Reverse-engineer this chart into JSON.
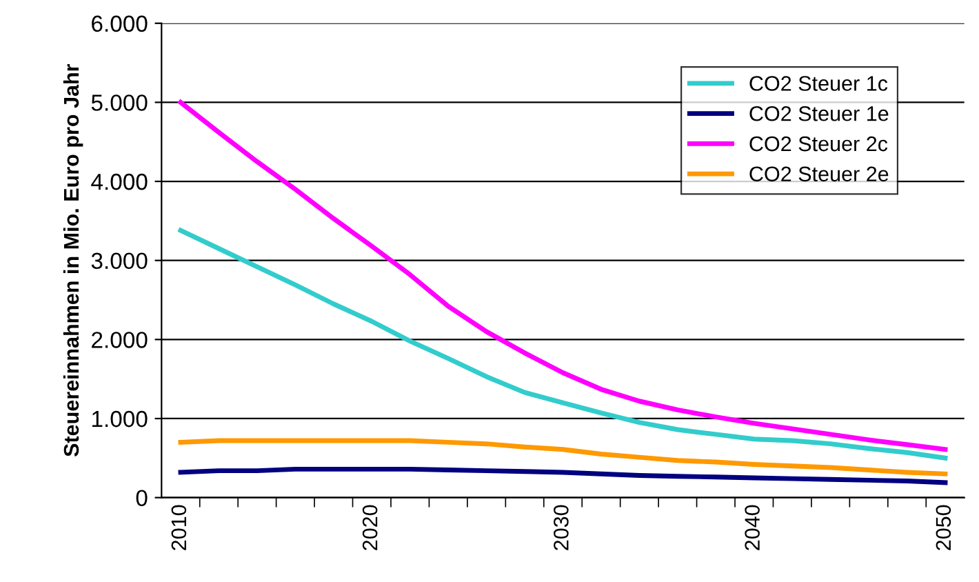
{
  "chart_data": {
    "type": "line",
    "ylabel": "Steuereinnahmen in Mio. Euro pro Jahr",
    "categories": [
      "2010",
      null,
      null,
      null,
      null,
      "2020",
      null,
      null,
      null,
      null,
      "2030",
      null,
      null,
      null,
      null,
      "2040",
      null,
      null,
      null,
      null,
      "2050"
    ],
    "series": [
      {
        "name": "CO2 Steuer 1c",
        "color": "#33cccc",
        "values": [
          3380,
          3150,
          2920,
          2690,
          2450,
          2230,
          1980,
          1760,
          1530,
          1330,
          1200,
          1070,
          950,
          860,
          800,
          740,
          720,
          680,
          620,
          570,
          500
        ]
      },
      {
        "name": "CO2 Steuer 1e",
        "color": "#000080",
        "values": [
          320,
          340,
          340,
          360,
          360,
          360,
          360,
          350,
          340,
          330,
          320,
          300,
          280,
          270,
          260,
          250,
          240,
          230,
          220,
          210,
          190
        ]
      },
      {
        "name": "CO2 Steuer 2c",
        "color": "#ff00ff",
        "values": [
          5000,
          4620,
          4250,
          3900,
          3530,
          3180,
          2820,
          2420,
          2100,
          1830,
          1580,
          1370,
          1220,
          1110,
          1020,
          940,
          870,
          800,
          730,
          670,
          610
        ]
      },
      {
        "name": "CO2 Steuer 2e",
        "color": "#ff9900",
        "values": [
          700,
          720,
          720,
          720,
          720,
          720,
          720,
          700,
          680,
          640,
          610,
          550,
          510,
          470,
          450,
          420,
          400,
          380,
          350,
          320,
          300
        ]
      }
    ],
    "ylim": [
      0,
      6000
    ],
    "yticks": [
      0,
      {
        "value": 1000,
        "label": "1.000"
      },
      {
        "value": 2000,
        "label": "2.000"
      },
      {
        "value": 3000,
        "label": "3.000"
      },
      {
        "value": 4000,
        "label": "4.000"
      },
      {
        "value": 5000,
        "label": "5.000"
      },
      {
        "value": 6000,
        "label": "6.000"
      }
    ],
    "grid": "y",
    "legend": "top right",
    "marker": "none",
    "line_style": "solid"
  }
}
